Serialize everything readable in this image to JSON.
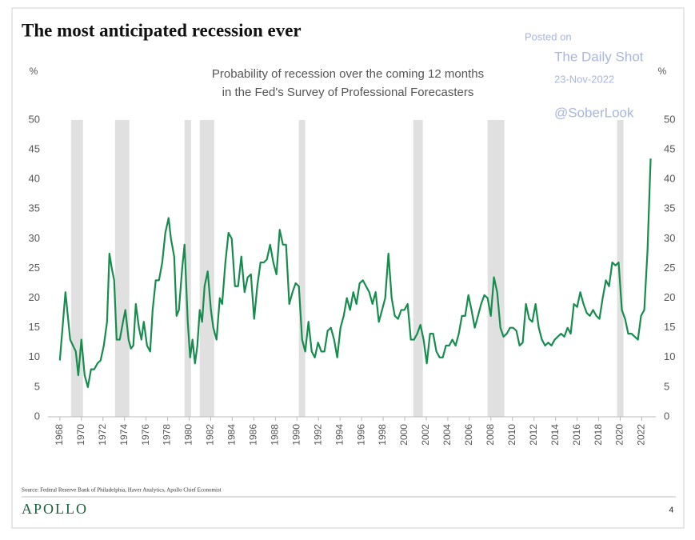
{
  "chart_data": {
    "type": "line",
    "title": "The most anticipated recession ever",
    "subtitle": [
      "Probability of recession over the coming 12 months",
      "in the Fed's Survey of Professional Forecasters"
    ],
    "ylabel": "%",
    "y2label": "%",
    "color": "#178c4e",
    "recession_color": "#e0e0e0",
    "recessions": [
      [
        1969.04,
        1970.15
      ],
      [
        1973.12,
        1974.45
      ],
      [
        1979.57,
        1980.17
      ],
      [
        1980.98,
        1982.32
      ],
      [
        1990.18,
        1990.77
      ],
      [
        2000.79,
        2001.68
      ],
      [
        2007.69,
        2009.25
      ],
      [
        2019.71,
        2020.3
      ]
    ],
    "x": [
      1968.0,
      1968.52,
      1968.96,
      1969.48,
      1969.71,
      1970.0,
      1970.3,
      1970.6,
      1970.89,
      1971.19,
      1971.49,
      1971.78,
      1972.08,
      1972.38,
      1972.6,
      1972.82,
      1973.04,
      1973.27,
      1973.56,
      1973.86,
      1974.08,
      1974.38,
      1974.6,
      1974.82,
      1975.05,
      1975.34,
      1975.57,
      1975.79,
      1976.09,
      1976.38,
      1976.61,
      1976.9,
      1977.2,
      1977.5,
      1977.79,
      1978.09,
      1978.31,
      1978.61,
      1978.83,
      1979.05,
      1979.35,
      1979.57,
      1979.87,
      1980.09,
      1980.31,
      1980.54,
      1980.76,
      1980.98,
      1981.2,
      1981.43,
      1981.72,
      1982.02,
      1982.24,
      1982.54,
      1982.84,
      1983.06,
      1983.36,
      1983.65,
      1983.95,
      1984.25,
      1984.54,
      1984.84,
      1985.14,
      1985.43,
      1985.73,
      1986.03,
      1986.32,
      1986.62,
      1986.92,
      1987.21,
      1987.51,
      1987.81,
      1988.1,
      1988.4,
      1988.7,
      1988.99,
      1989.29,
      1989.59,
      1989.88,
      1990.18,
      1990.48,
      1990.77,
      1991.07,
      1991.37,
      1991.66,
      1991.96,
      1992.26,
      1992.55,
      1992.85,
      1993.15,
      1993.45,
      1993.74,
      1994.04,
      1994.34,
      1994.63,
      1994.93,
      1995.23,
      1995.52,
      1995.82,
      1996.12,
      1996.41,
      1996.71,
      1997.01,
      1997.3,
      1997.6,
      1997.9,
      1998.19,
      1998.49,
      1998.79,
      1999.08,
      1999.38,
      1999.68,
      1999.97,
      2000.27,
      2000.57,
      2000.86,
      2001.16,
      2001.46,
      2001.75,
      2002.05,
      2002.35,
      2002.64,
      2002.94,
      2003.24,
      2003.53,
      2003.83,
      2004.13,
      2004.42,
      2004.72,
      2005.02,
      2005.31,
      2005.61,
      2005.91,
      2006.2,
      2006.5,
      2006.8,
      2007.09,
      2007.39,
      2007.69,
      2007.99,
      2008.28,
      2008.58,
      2008.88,
      2009.17,
      2009.47,
      2009.77,
      2010.06,
      2010.36,
      2010.66,
      2010.95,
      2011.25,
      2011.55,
      2011.84,
      2012.14,
      2012.44,
      2012.73,
      2013.03,
      2013.32,
      2013.62,
      2013.92,
      2014.21,
      2014.51,
      2014.81,
      2015.11,
      2015.4,
      2015.7,
      2016.0,
      2016.29,
      2016.59,
      2016.89,
      2017.18,
      2017.48,
      2017.78,
      2018.07,
      2018.37,
      2018.67,
      2018.96,
      2019.26,
      2019.56,
      2019.85,
      2020.15,
      2020.45,
      2020.74,
      2021.04,
      2021.34,
      2021.64,
      2021.93,
      2022.23,
      2022.53,
      2022.82
    ],
    "values": [
      9.5,
      21,
      13,
      11,
      7,
      13,
      7,
      5,
      8,
      8,
      9,
      9.5,
      12,
      16,
      27.5,
      25,
      23,
      13,
      13,
      16,
      18,
      13,
      11.5,
      12,
      19,
      15,
      13,
      16,
      12,
      11,
      18,
      23,
      23,
      26,
      31,
      33.5,
      30,
      27,
      17,
      18,
      25,
      29,
      16,
      10,
      13,
      9,
      12,
      18,
      16,
      22,
      24.5,
      18,
      15,
      13,
      20,
      19,
      26,
      31,
      30,
      22,
      22,
      27,
      21,
      23.5,
      24,
      16.5,
      22,
      26,
      26,
      26.5,
      29,
      26,
      24,
      31.5,
      29,
      29,
      19,
      21,
      22.5,
      22,
      13,
      11,
      16,
      11,
      10,
      12.5,
      11,
      11,
      14.5,
      15,
      13,
      10,
      15,
      17,
      20,
      18,
      21,
      19,
      22.5,
      23,
      22,
      21,
      19,
      21,
      16,
      18,
      20,
      27.5,
      20,
      17,
      16.5,
      18,
      18,
      19,
      13,
      13,
      14,
      15.5,
      13,
      9,
      14,
      14,
      11,
      10,
      10,
      12,
      12,
      13,
      12,
      14,
      17,
      17,
      20.5,
      18,
      15,
      17,
      19,
      20.5,
      20,
      17,
      23.5,
      21,
      15,
      13.5,
      14,
      15,
      15,
      14.5,
      12,
      12.5,
      19,
      16.5,
      16,
      19,
      15,
      13,
      12,
      12.5,
      12,
      13,
      13.5,
      14,
      13.5,
      15,
      14,
      19,
      18.5,
      21,
      19,
      17.5,
      17,
      18,
      17,
      16.5,
      20,
      23,
      22,
      26,
      25.5,
      26,
      18,
      16.5,
      14,
      14,
      13.5,
      13,
      17,
      18,
      28,
      43.5
    ],
    "xlim": [
      1966.9,
      2023.3
    ],
    "xticks": [
      1968,
      1970,
      1972,
      1974,
      1976,
      1978,
      1980,
      1982,
      1984,
      1986,
      1988,
      1990,
      1992,
      1994,
      1996,
      1998,
      2000,
      2002,
      2004,
      2006,
      2008,
      2010,
      2012,
      2014,
      2016,
      2018,
      2020,
      2022
    ],
    "ylim": [
      0,
      50
    ],
    "yticks": [
      0,
      5,
      10,
      15,
      20,
      25,
      30,
      35,
      40,
      45,
      50
    ],
    "y2lim": [
      0,
      50
    ],
    "y2ticks": [
      0,
      5,
      10,
      15,
      20,
      25,
      30,
      35,
      40,
      45,
      50
    ]
  },
  "watermark": {
    "posted_on": "Posted on",
    "site": "The Daily Shot",
    "date": "23-Nov-2022",
    "handle": "@SoberLook"
  },
  "footer": {
    "source": "Source: Federal Reserve Bank of Philadelphia, Haver Analytics, Apollo Chief Economist",
    "logo": "APOLLO",
    "page": "4"
  }
}
